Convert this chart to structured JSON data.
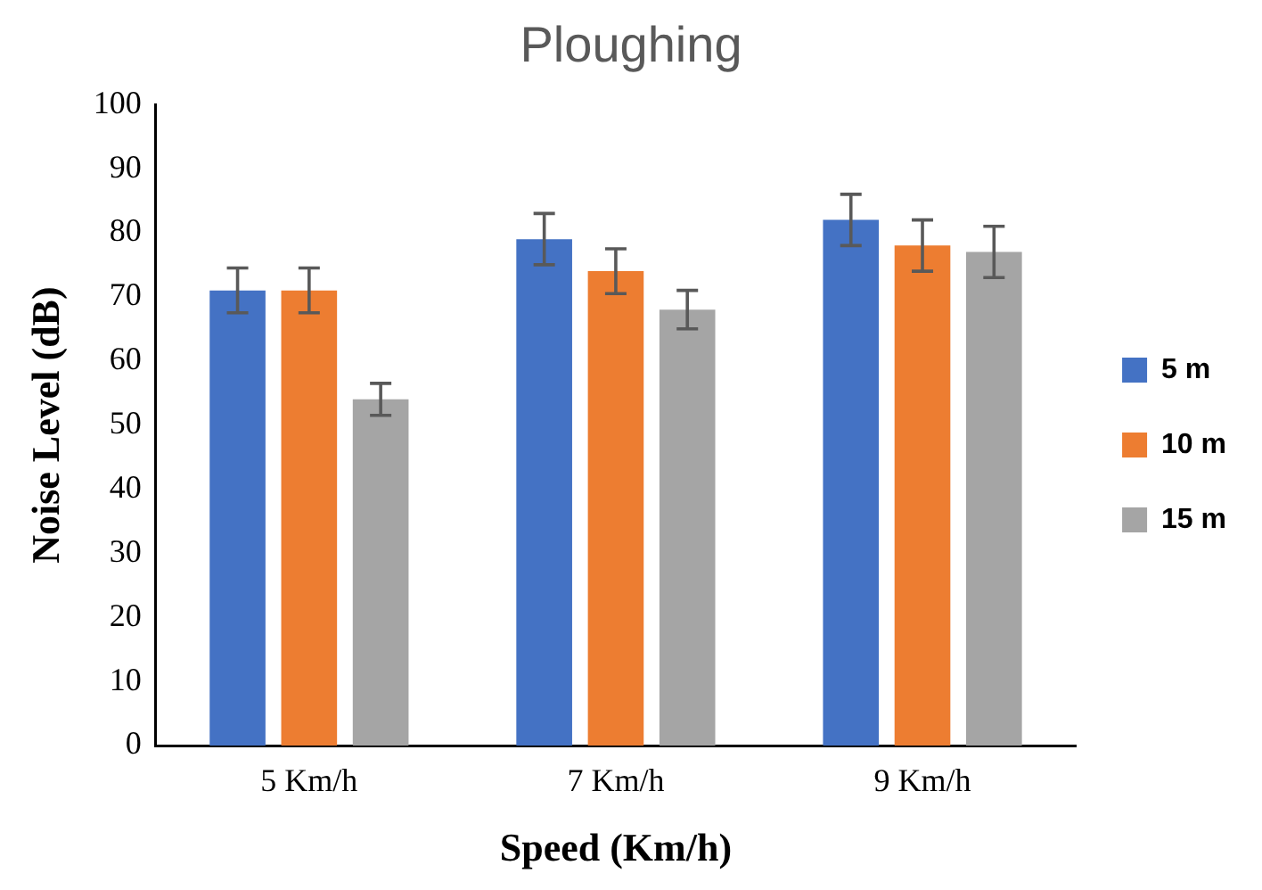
{
  "chart_data": {
    "type": "bar",
    "title": "Ploughing",
    "xlabel": "Speed (Km/h)",
    "ylabel": "Noise Level (dB)",
    "categories": [
      "5 Km/h",
      "7 Km/h",
      "9 Km/h"
    ],
    "series": [
      {
        "name": "5 m",
        "color": "#4472c4",
        "values": [
          71,
          79,
          82
        ],
        "errors": [
          3.5,
          4,
          4
        ]
      },
      {
        "name": "10 m",
        "color": "#ed7d31",
        "values": [
          71,
          74,
          78
        ],
        "errors": [
          3.5,
          3.5,
          4
        ]
      },
      {
        "name": "15 m",
        "color": "#a5a5a5",
        "values": [
          54,
          68,
          77
        ],
        "errors": [
          2.5,
          3,
          4
        ]
      }
    ],
    "ylim": [
      0,
      100
    ],
    "yticks": [
      0,
      10,
      20,
      30,
      40,
      50,
      60,
      70,
      80,
      90,
      100
    ],
    "grid": false,
    "legend": "right"
  }
}
